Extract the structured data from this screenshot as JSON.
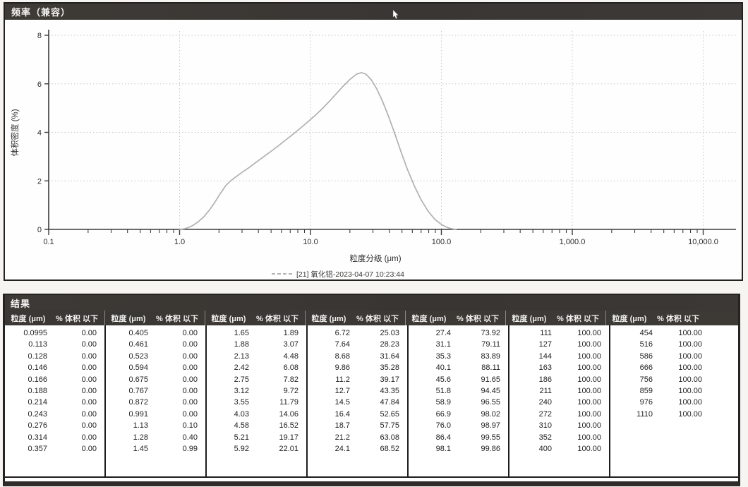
{
  "frequency_panel": {
    "title": "频率（兼容）",
    "chart_data": {
      "type": "line",
      "title": "频率（兼容）",
      "xlabel": "粒度分级 (μm)",
      "ylabel": "体积密度 (%)",
      "x_scale": "log",
      "xlim": [
        0.1,
        10000
      ],
      "ylim": [
        0,
        8
      ],
      "grid": true,
      "legend_position": "bottom",
      "x_ticks": [
        {
          "v": 0.1,
          "label": "0.1"
        },
        {
          "v": 1,
          "label": "1.0"
        },
        {
          "v": 10,
          "label": "10.0"
        },
        {
          "v": 100,
          "label": "100.0"
        },
        {
          "v": 1000,
          "label": "1,000.0"
        },
        {
          "v": 10000,
          "label": "10,000.0"
        }
      ],
      "y_ticks": [
        {
          "v": 0,
          "label": "0"
        },
        {
          "v": 2,
          "label": "2"
        },
        {
          "v": 4,
          "label": "4"
        },
        {
          "v": 6,
          "label": "6"
        },
        {
          "v": 8,
          "label": "8"
        }
      ],
      "series": [
        {
          "name": "[21] 氧化铝-2023-04-07 10:23:44",
          "color": "#b1b1af",
          "points": [
            [
              1.0,
              0.0
            ],
            [
              1.08,
              0.02
            ],
            [
              1.16,
              0.07
            ],
            [
              1.26,
              0.16
            ],
            [
              1.38,
              0.3
            ],
            [
              1.52,
              0.5
            ],
            [
              1.68,
              0.78
            ],
            [
              1.85,
              1.1
            ],
            [
              2.05,
              1.48
            ],
            [
              2.25,
              1.8
            ],
            [
              2.45,
              2.0
            ],
            [
              2.7,
              2.17
            ],
            [
              3.0,
              2.35
            ],
            [
              3.4,
              2.55
            ],
            [
              3.85,
              2.77
            ],
            [
              4.35,
              2.98
            ],
            [
              4.95,
              3.2
            ],
            [
              5.6,
              3.42
            ],
            [
              6.35,
              3.65
            ],
            [
              7.2,
              3.88
            ],
            [
              8.2,
              4.13
            ],
            [
              9.3,
              4.38
            ],
            [
              10.6,
              4.65
            ],
            [
              12.0,
              4.92
            ],
            [
              13.6,
              5.22
            ],
            [
              15.5,
              5.55
            ],
            [
              17.6,
              5.88
            ],
            [
              20.0,
              6.18
            ],
            [
              22.5,
              6.4
            ],
            [
              24.5,
              6.46
            ],
            [
              26.5,
              6.4
            ],
            [
              29.0,
              6.18
            ],
            [
              32.0,
              5.8
            ],
            [
              35.5,
              5.28
            ],
            [
              39.5,
              4.65
            ],
            [
              44.0,
              3.95
            ],
            [
              49.0,
              3.22
            ],
            [
              55.0,
              2.48
            ],
            [
              62.0,
              1.8
            ],
            [
              70.0,
              1.22
            ],
            [
              79.0,
              0.76
            ],
            [
              89.0,
              0.42
            ],
            [
              100.0,
              0.2
            ],
            [
              112.0,
              0.07
            ],
            [
              122.0,
              0.02
            ],
            [
              130.0,
              0.0
            ]
          ]
        }
      ]
    }
  },
  "results_panel": {
    "title": "结果",
    "col_headers": {
      "size": "粒度 (μm)",
      "pct": "% 体积 以下"
    },
    "groups": [
      {
        "rows": [
          [
            "0.0995",
            "0.00"
          ],
          [
            "0.113",
            "0.00"
          ],
          [
            "0.128",
            "0.00"
          ],
          [
            "0.146",
            "0.00"
          ],
          [
            "0.166",
            "0.00"
          ],
          [
            "0.188",
            "0.00"
          ],
          [
            "0.214",
            "0.00"
          ],
          [
            "0.243",
            "0.00"
          ],
          [
            "0.276",
            "0.00"
          ],
          [
            "0.314",
            "0.00"
          ],
          [
            "0.357",
            "0.00"
          ]
        ]
      },
      {
        "rows": [
          [
            "0.405",
            "0.00"
          ],
          [
            "0.461",
            "0.00"
          ],
          [
            "0.523",
            "0.00"
          ],
          [
            "0.594",
            "0.00"
          ],
          [
            "0.675",
            "0.00"
          ],
          [
            "0.767",
            "0.00"
          ],
          [
            "0.872",
            "0.00"
          ],
          [
            "0.991",
            "0.00"
          ],
          [
            "1.13",
            "0.10"
          ],
          [
            "1.28",
            "0.40"
          ],
          [
            "1.45",
            "0.99"
          ]
        ]
      },
      {
        "rows": [
          [
            "1.65",
            "1.89"
          ],
          [
            "1.88",
            "3.07"
          ],
          [
            "2.13",
            "4.48"
          ],
          [
            "2.42",
            "6.08"
          ],
          [
            "2.75",
            "7.82"
          ],
          [
            "3.12",
            "9.72"
          ],
          [
            "3.55",
            "11.79"
          ],
          [
            "4.03",
            "14.06"
          ],
          [
            "4.58",
            "16.52"
          ],
          [
            "5.21",
            "19.17"
          ],
          [
            "5.92",
            "22.01"
          ]
        ]
      },
      {
        "rows": [
          [
            "6.72",
            "25.03"
          ],
          [
            "7.64",
            "28.23"
          ],
          [
            "8.68",
            "31.64"
          ],
          [
            "9.86",
            "35.28"
          ],
          [
            "11.2",
            "39.17"
          ],
          [
            "12.7",
            "43.35"
          ],
          [
            "14.5",
            "47.84"
          ],
          [
            "16.4",
            "52.65"
          ],
          [
            "18.7",
            "57.75"
          ],
          [
            "21.2",
            "63.08"
          ],
          [
            "24.1",
            "68.52"
          ]
        ]
      },
      {
        "rows": [
          [
            "27.4",
            "73.92"
          ],
          [
            "31.1",
            "79.11"
          ],
          [
            "35.3",
            "83.89"
          ],
          [
            "40.1",
            "88.11"
          ],
          [
            "45.6",
            "91.65"
          ],
          [
            "51.8",
            "94.45"
          ],
          [
            "58.9",
            "96.55"
          ],
          [
            "66.9",
            "98.02"
          ],
          [
            "76.0",
            "98.97"
          ],
          [
            "86.4",
            "99.55"
          ],
          [
            "98.1",
            "99.86"
          ]
        ]
      },
      {
        "rows": [
          [
            "111",
            "100.00"
          ],
          [
            "127",
            "100.00"
          ],
          [
            "144",
            "100.00"
          ],
          [
            "163",
            "100.00"
          ],
          [
            "186",
            "100.00"
          ],
          [
            "211",
            "100.00"
          ],
          [
            "240",
            "100.00"
          ],
          [
            "272",
            "100.00"
          ],
          [
            "310",
            "100.00"
          ],
          [
            "352",
            "100.00"
          ],
          [
            "400",
            "100.00"
          ]
        ]
      },
      {
        "rows": [
          [
            "454",
            "100.00"
          ],
          [
            "516",
            "100.00"
          ],
          [
            "586",
            "100.00"
          ],
          [
            "666",
            "100.00"
          ],
          [
            "756",
            "100.00"
          ],
          [
            "859",
            "100.00"
          ],
          [
            "976",
            "100.00"
          ],
          [
            "1110",
            "100.00"
          ]
        ]
      }
    ]
  },
  "colors": {
    "header_bar": "#3b3835",
    "curve": "#b1b1af",
    "grid": "#c6c6c4",
    "axis": "#3d3c3b"
  }
}
